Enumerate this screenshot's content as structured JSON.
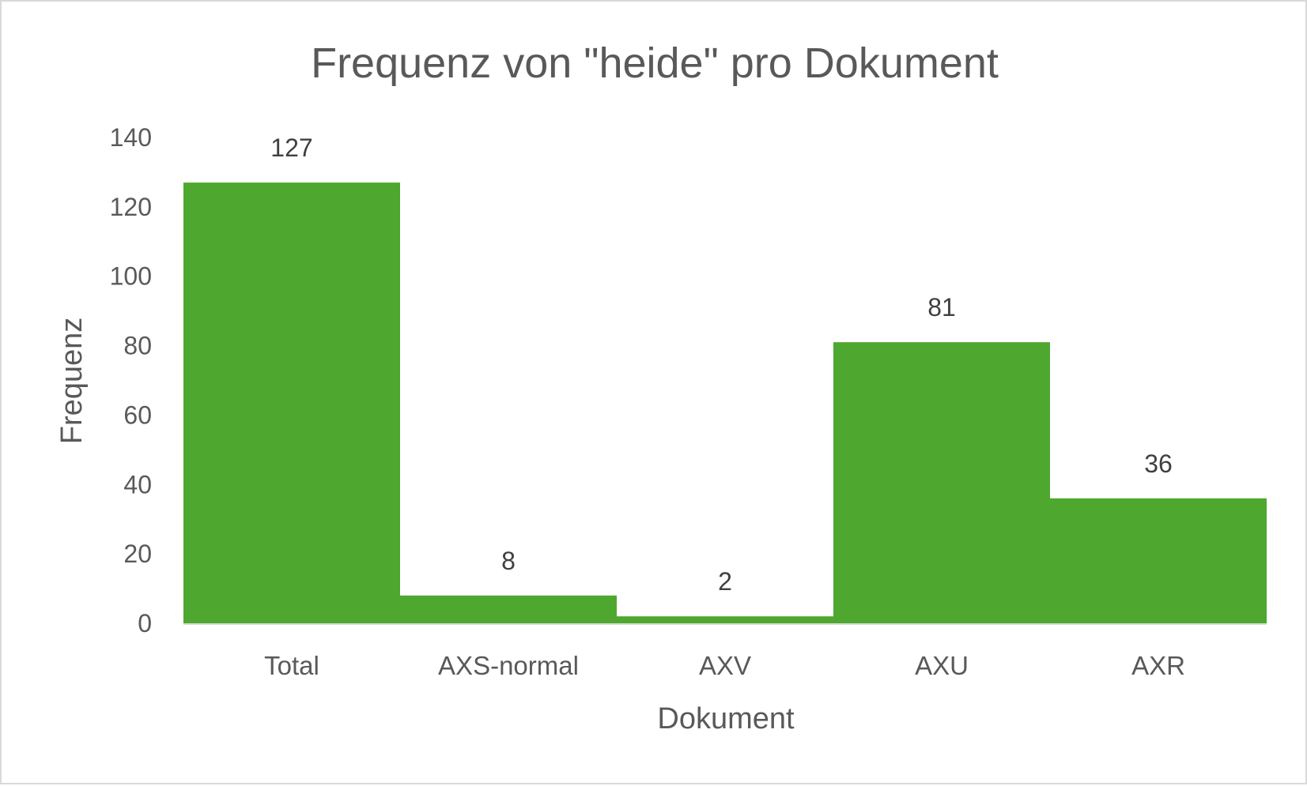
{
  "chart_data": {
    "type": "bar",
    "title": "Frequenz von \"heide\" pro Dokument",
    "xlabel": "Dokument",
    "ylabel": "Frequenz",
    "categories": [
      "Total",
      "AXS-normal",
      "AXV",
      "AXU",
      "AXR"
    ],
    "values": [
      127,
      8,
      2,
      81,
      36
    ],
    "ylim": [
      0,
      140
    ],
    "yticks": [
      0,
      20,
      40,
      60,
      80,
      100,
      120,
      140
    ],
    "data_labels": true,
    "grid": false,
    "legend": "none",
    "bar_color": "#4ea72e",
    "baseline_color": "#d9d9d9",
    "text_color": "#595959"
  }
}
